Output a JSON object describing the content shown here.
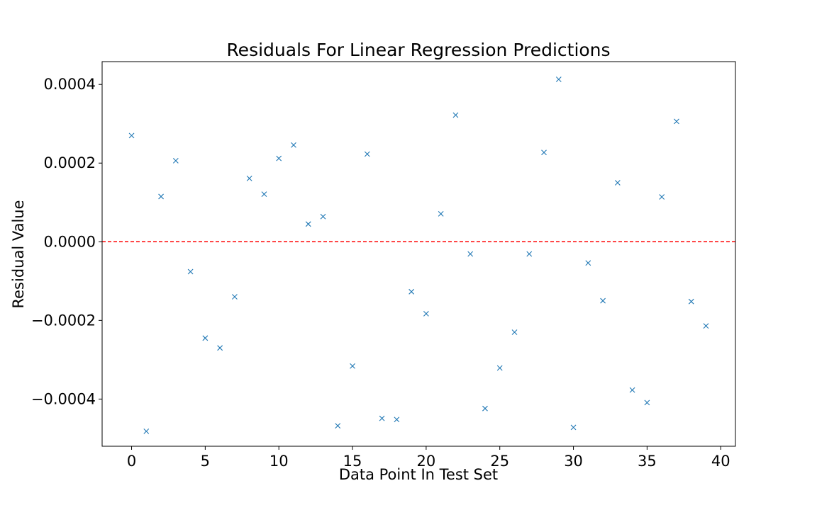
{
  "chart_data": {
    "type": "scatter",
    "title": "Residuals For Linear Regression Predictions",
    "xlabel": "Data Point In Test Set",
    "ylabel": "Residual Value",
    "xlim": [
      -2,
      41
    ],
    "ylim": [
      -0.00052,
      0.000458
    ],
    "xticks": [
      0,
      5,
      10,
      15,
      20,
      25,
      30,
      35,
      40
    ],
    "xtick_labels": [
      "0",
      "5",
      "10",
      "15",
      "20",
      "25",
      "30",
      "35",
      "40"
    ],
    "yticks": [
      -0.0004,
      -0.0002,
      0.0,
      0.0002,
      0.0004
    ],
    "ytick_labels": [
      "−0.0004",
      "−0.0002",
      "0.0000",
      "0.0002",
      "0.0004"
    ],
    "grid": false,
    "marker": "x",
    "marker_color": "#1f77b4",
    "reference_line": {
      "y": 0.0,
      "style": "dashed",
      "color": "#ff0000"
    },
    "series": [
      {
        "x": [
          0,
          1,
          2,
          3,
          4,
          5,
          6,
          7,
          8,
          9,
          10,
          11,
          12,
          13,
          14,
          15,
          16,
          17,
          18,
          19,
          20,
          21,
          22,
          23,
          24,
          25,
          26,
          27,
          28,
          29,
          30,
          31,
          32,
          33,
          34,
          35,
          36,
          37,
          38,
          39
        ],
        "y": [
          0.00027,
          -0.000482,
          0.000115,
          0.000206,
          -7.6e-05,
          -0.000245,
          -0.00027,
          -0.00014,
          0.000161,
          0.000121,
          0.000212,
          0.000246,
          4.5e-05,
          6.4e-05,
          -0.000468,
          -0.000316,
          0.000223,
          -0.000449,
          -0.000452,
          -0.000127,
          -0.000183,
          7.1e-05,
          0.000322,
          -3.1e-05,
          -0.000424,
          -0.000321,
          -0.00023,
          -3.1e-05,
          0.000227,
          0.000413,
          -0.000472,
          -5.4e-05,
          -0.00015,
          0.00015,
          -0.000377,
          -0.000409,
          0.000114,
          0.000306,
          -0.000152,
          -0.000214
        ]
      }
    ]
  }
}
